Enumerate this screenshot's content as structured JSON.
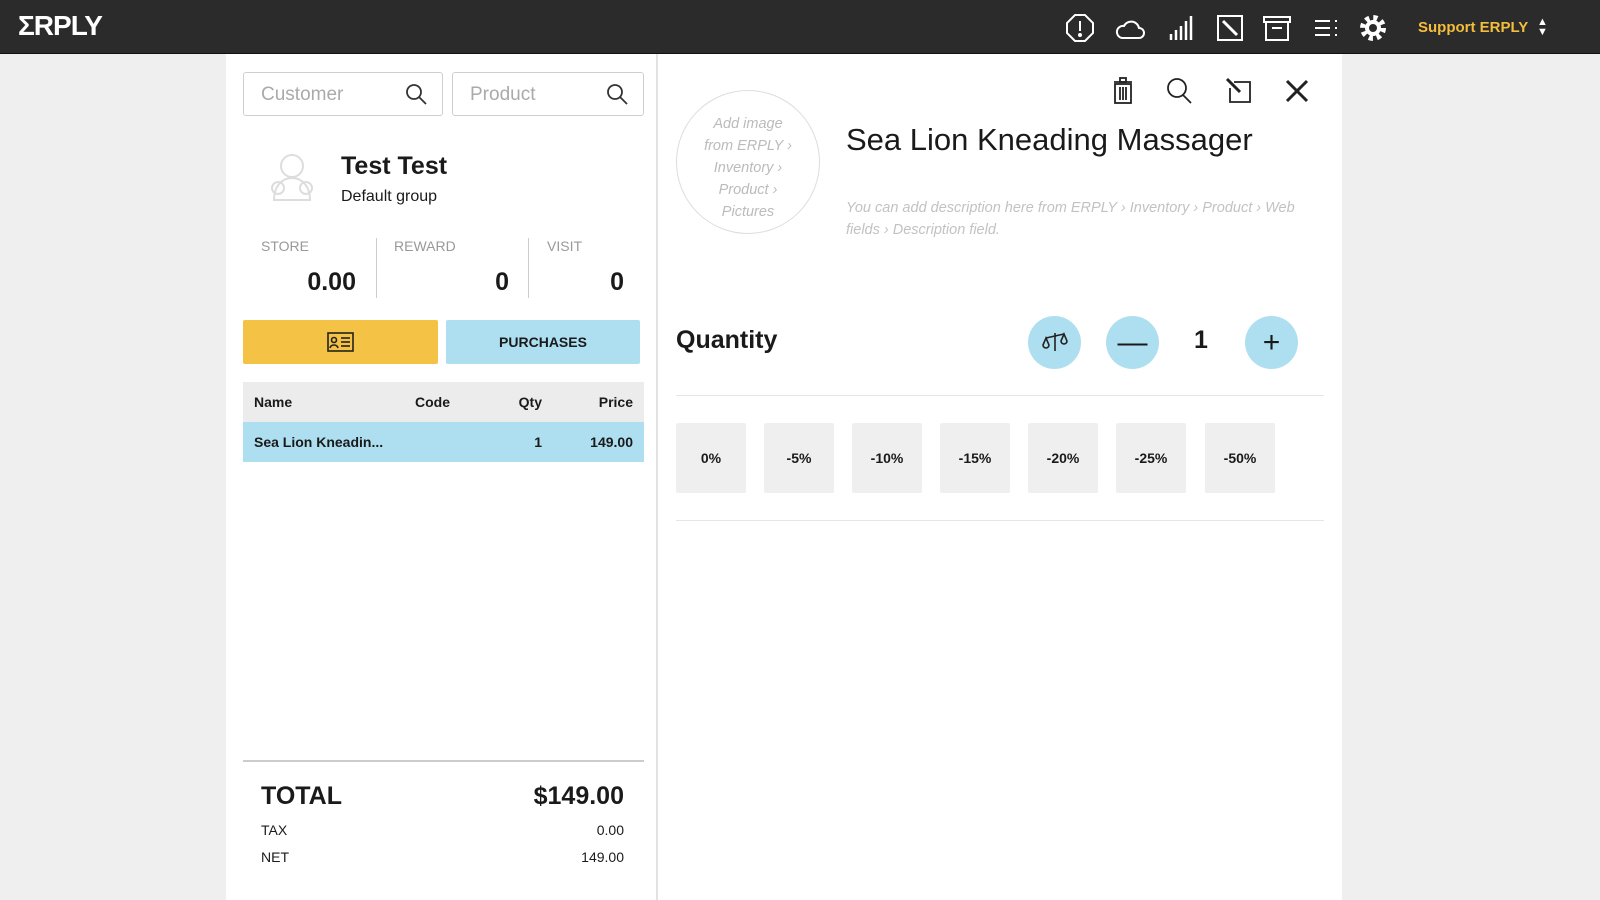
{
  "app": {
    "logo": "ΣRPLY",
    "user": "Support ERPLY",
    "accent": "#f4be3c",
    "highlight": "#aedff0",
    "icons": [
      "alert-icon",
      "cloud-icon",
      "signal-icon",
      "edit-icon",
      "archive-icon",
      "menu-icon",
      "gear-icon"
    ]
  },
  "left": {
    "customer_placeholder": "Customer",
    "product_placeholder": "Product",
    "customer": {
      "name": "Test Test",
      "group": "Default group"
    },
    "stats": [
      {
        "label": "STORE",
        "value": "0.00"
      },
      {
        "label": "REWARD",
        "value": "0"
      },
      {
        "label": "VISIT",
        "value": "0"
      }
    ],
    "purchases_label": "PURCHASES",
    "table": {
      "headers": [
        "Name",
        "Code",
        "Qty",
        "Price"
      ],
      "rows": [
        {
          "name": "Sea Lion Kneadin...",
          "code": "",
          "qty": "1",
          "price": "149.00"
        }
      ]
    },
    "totals": {
      "total_label": "TOTAL",
      "total": "$149.00",
      "tax_label": "TAX",
      "tax": "0.00",
      "net_label": "NET",
      "net": "149.00"
    }
  },
  "product": {
    "image_placeholder": [
      "Add image",
      "from ERPLY ›",
      "Inventory ›",
      "Product ›",
      "Pictures"
    ],
    "title": "Sea Lion Kneading Massager",
    "description": "You can add description here from ERPLY › Inventory › Product › Web fields › Description field.",
    "quantity_label": "Quantity",
    "quantity": "1",
    "discounts": [
      "0%",
      "-5%",
      "-10%",
      "-15%",
      "-20%",
      "-25%",
      "-50%"
    ]
  }
}
